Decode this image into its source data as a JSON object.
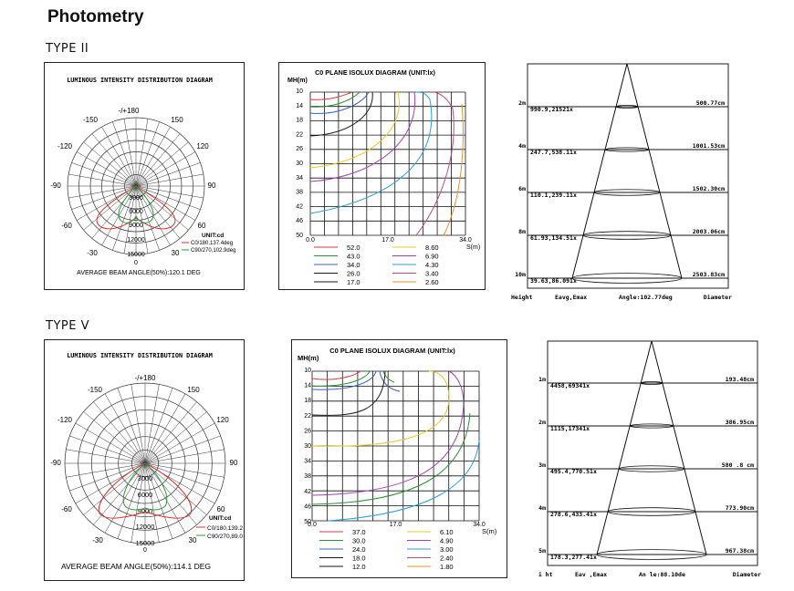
{
  "page_title": "Photometry",
  "sections": [
    {
      "heading": "TYPE II",
      "polar": {
        "title": "LUMINOUS INTENSITY DISTRIBUTION DIAGRAM",
        "angles": [
          "-/+180",
          "150",
          "-150",
          "120",
          "-120",
          "90",
          "-90",
          "60",
          "-60",
          "30",
          "-30",
          "0"
        ],
        "rings": [
          "3000",
          "6000",
          "9000",
          "12000",
          "15000"
        ],
        "unit": "UNIT:cd",
        "legend": [
          "C0/180,137.4deg",
          "C90/270,102.9deg"
        ],
        "beam_angle": "AVERAGE BEAM ANGLE(50%):120.1 DEG",
        "colors": {
          "c0": "#e0302f",
          "c90": "#2a9a3a"
        }
      },
      "isolux": {
        "title": "C0 PLANE ISOLUX DIAGRAM (UNIT:lx)",
        "y_axis_label": "MH(m)",
        "x_axis_label": "S(m)",
        "y_ticks": [
          "10",
          "14",
          "18",
          "22",
          "26",
          "30",
          "34",
          "38",
          "42",
          "46",
          "50"
        ],
        "x_ticks": [
          "0.0",
          "17.0",
          "34.0"
        ],
        "legend": [
          {
            "value": "52.0",
            "color": "#d43b3b"
          },
          {
            "value": "43.0",
            "color": "#2c8f3a"
          },
          {
            "value": "34.0",
            "color": "#3c5fc8"
          },
          {
            "value": "26.0",
            "color": "#1a1a1a"
          },
          {
            "value": "17.0",
            "color": "#1a1a1a"
          },
          {
            "value": "8.60",
            "color": "#e7c928"
          },
          {
            "value": "6.90",
            "color": "#a040b0"
          },
          {
            "value": "4.30",
            "color": "#2a9fd8"
          },
          {
            "value": "3.40",
            "color": "#c04880"
          },
          {
            "value": "2.60",
            "color": "#e8902a"
          }
        ]
      },
      "cone": {
        "rows": [
          {
            "height": "2m",
            "left": "990.9,21521x",
            "diameter": "500.77cm"
          },
          {
            "height": "4m",
            "left": "247.7,538.11x",
            "diameter": "1001.53cm"
          },
          {
            "height": "6m",
            "left": "110.1,239.11x",
            "diameter": "1502.30cm"
          },
          {
            "height": "8m",
            "left": "61.93,134.51x",
            "diameter": "2003.06cm"
          },
          {
            "height": "10m",
            "left": "39.63,86.091x",
            "diameter": "2503.83cm"
          }
        ],
        "footer": {
          "height": "Height",
          "eavg": "Eavg,Emax",
          "angle": "Angle:102.77deg",
          "diameter": "Diameter"
        }
      }
    },
    {
      "heading": "TYPE V",
      "polar": {
        "title": "LUMINOUS INTENSITY DISTRIBUTION DIAGRAM",
        "angles": [
          "-/+180",
          "150",
          "-150",
          "120",
          "-120",
          "90",
          "-90",
          "60",
          "-60",
          "30",
          "-30",
          "0"
        ],
        "rings": [
          "3000",
          "6000",
          "9000",
          "12000",
          "15000"
        ],
        "unit": "UNIT:cd",
        "legend": [
          "C0/180,139.2",
          "C90/270,89.0"
        ],
        "beam_angle": "AVERAGE BEAM ANGLE(50%):114.1 DEG",
        "colors": {
          "c0": "#e0302f",
          "c90": "#2a9a3a"
        }
      },
      "isolux": {
        "title": "C0 PLANE ISOLUX DIAGRAM (UNIT:lx)",
        "y_axis_label": "MH(m)",
        "x_axis_label": "S(m)",
        "y_ticks": [
          "10",
          "14",
          "18",
          "22",
          "26",
          "30",
          "34",
          "38",
          "42",
          "46",
          "50"
        ],
        "x_ticks": [
          "0.0",
          "17.0",
          "34.0"
        ],
        "legend": [
          {
            "value": "37.0",
            "color": "#d43b3b"
          },
          {
            "value": "30.0",
            "color": "#2c8f3a"
          },
          {
            "value": "24.0",
            "color": "#3c5fc8"
          },
          {
            "value": "18.0",
            "color": "#1a1a1a"
          },
          {
            "value": "12.0",
            "color": "#1a1a1a"
          },
          {
            "value": "6.10",
            "color": "#e7c928"
          },
          {
            "value": "4.90",
            "color": "#a040b0"
          },
          {
            "value": "3.00",
            "color": "#2a9fd8"
          },
          {
            "value": "2.40",
            "color": "#c04880"
          },
          {
            "value": "1.80",
            "color": "#e8902a"
          }
        ]
      },
      "cone": {
        "rows": [
          {
            "height": "1m",
            "left": "4458,69341x",
            "diameter": "193.48cm"
          },
          {
            "height": "2m",
            "left": "1115,17341x",
            "diameter": "386.95cm"
          },
          {
            "height": "3m",
            "left": "495.4,770.51x",
            "diameter": "580 .8 cm"
          },
          {
            "height": "4m",
            "left": "278.6,433.41x",
            "diameter": "773.90cm"
          },
          {
            "height": "5m",
            "left": "178.3,277.41x",
            "diameter": "967.38cm"
          }
        ],
        "footer": {
          "height": "Hei ht",
          "eavg": "Eav ,Emax",
          "angle": "An le:88.10de",
          "diameter": "Diameter"
        }
      }
    }
  ]
}
